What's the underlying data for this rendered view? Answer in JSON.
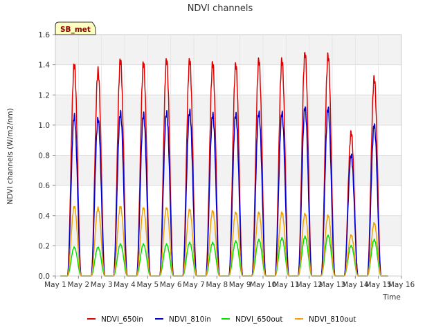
{
  "chart_data": {
    "type": "line",
    "title": "NDVI channels",
    "xlabel": "Time",
    "ylabel": "NDVI channels (W/m2/nm)",
    "ylim": [
      0,
      1.6
    ],
    "yticks": [
      0.0,
      0.2,
      0.4,
      0.6,
      0.8,
      1.0,
      1.2,
      1.4,
      1.6
    ],
    "ytick_labels": [
      "0.0",
      "0.2",
      "0.4",
      "0.6",
      "0.8",
      "1.0",
      "1.2",
      "1.4",
      "1.6"
    ],
    "xlim": [
      1,
      16
    ],
    "xticks": [
      1,
      2,
      3,
      4,
      5,
      6,
      7,
      8,
      9,
      10,
      11,
      12,
      13,
      14,
      15,
      16
    ],
    "xtick_labels": [
      "May 1",
      "May 2",
      "May 3",
      "May 4",
      "May 5",
      "May 6",
      "May 7",
      "May 8",
      "May 9",
      "May 10",
      "May 11",
      "May 12",
      "May 13",
      "May 14",
      "May 15",
      "May 16"
    ],
    "grid": true,
    "legend_position": "bottom",
    "badge": "SB_met",
    "day_centers": [
      1.82,
      2.85,
      3.82,
      4.82,
      5.82,
      6.82,
      7.82,
      8.82,
      9.82,
      10.82,
      11.82,
      12.82,
      13.82,
      14.82
    ],
    "series": [
      {
        "name": "NDVI_650in",
        "color": "#e00000",
        "daily_peak": [
          1.4,
          1.36,
          1.43,
          1.41,
          1.43,
          1.43,
          1.41,
          1.4,
          1.43,
          1.43,
          1.48,
          1.46,
          0.95,
          1.31
        ]
      },
      {
        "name": "NDVI_810in",
        "color": "#0000d0",
        "daily_peak": [
          1.06,
          1.04,
          1.08,
          1.07,
          1.08,
          1.09,
          1.07,
          1.07,
          1.08,
          1.08,
          1.12,
          1.11,
          0.8,
          1.0
        ]
      },
      {
        "name": "NDVI_650out",
        "color": "#00e000",
        "daily_peak": [
          0.19,
          0.19,
          0.21,
          0.21,
          0.21,
          0.22,
          0.22,
          0.23,
          0.24,
          0.25,
          0.26,
          0.27,
          0.2,
          0.24
        ]
      },
      {
        "name": "NDVI_810out",
        "color": "#f0a000",
        "daily_peak": [
          0.46,
          0.45,
          0.46,
          0.45,
          0.45,
          0.44,
          0.43,
          0.42,
          0.42,
          0.42,
          0.41,
          0.4,
          0.27,
          0.35
        ]
      }
    ]
  }
}
